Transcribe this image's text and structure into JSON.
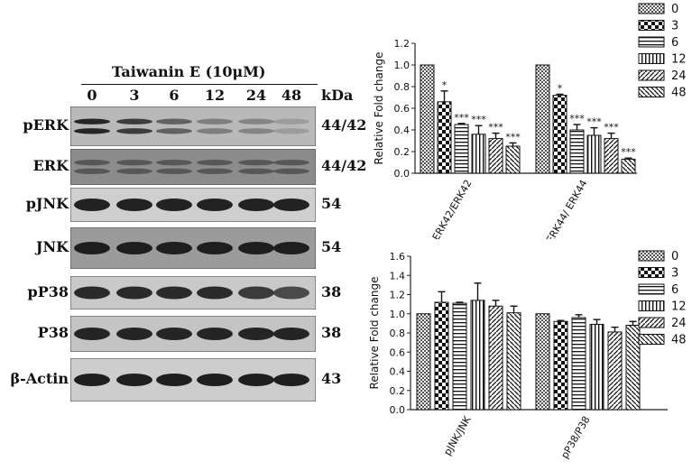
{
  "treatment_label": "Taiwanin E (10μM)",
  "lanes": [
    "0",
    "3",
    "6",
    "12",
    "24",
    "48"
  ],
  "kda_label": "kDa",
  "blots": [
    {
      "name": "pERK",
      "mw": "44/42",
      "bg": "#b9b9b9",
      "band_color": "#262626",
      "intensities": [
        1.0,
        0.85,
        0.6,
        0.4,
        0.35,
        0.2
      ],
      "double": true
    },
    {
      "name": "ERK",
      "mw": "44/42",
      "bg": "#8c8c8c",
      "band_color": "#4a4a4a",
      "intensities": [
        0.8,
        0.8,
        0.8,
        0.8,
        0.8,
        0.8
      ],
      "double": true
    },
    {
      "name": "pJNK",
      "mw": "54",
      "bg": "#cfcfcf",
      "band_color": "#222222",
      "intensities": [
        1,
        1,
        1,
        1,
        1,
        1
      ],
      "double": false
    },
    {
      "name": "JNK",
      "mw": "54",
      "bg": "#9b9b9b",
      "band_color": "#1e1e1e",
      "intensities": [
        1,
        1,
        1,
        1,
        1,
        1
      ],
      "double": false
    },
    {
      "name": "pP38",
      "mw": "38",
      "bg": "#c9c9c9",
      "band_color": "#2a2a2a",
      "intensities": [
        1,
        1,
        1,
        1,
        0.9,
        0.8
      ],
      "double": false
    },
    {
      "name": "P38",
      "mw": "38",
      "bg": "#c4c4c4",
      "band_color": "#252525",
      "intensities": [
        1,
        1,
        1,
        1,
        1,
        1
      ],
      "double": false
    },
    {
      "name": "β-Actin",
      "mw": "43",
      "bg": "#cdcdcd",
      "band_color": "#1f1f1f",
      "intensities": [
        1,
        1,
        1,
        1,
        1,
        1
      ],
      "double": false
    }
  ],
  "chart_data": [
    {
      "type": "bar",
      "ylabel": "Relative Fold change",
      "ylim": [
        0,
        1.2
      ],
      "yticks": [
        "0.0",
        "0.2",
        "0.4",
        "0.6",
        "0.8",
        "1.0",
        "1.2"
      ],
      "categories": [
        "pERK42/ERK42",
        "pERK44/ ERK44"
      ],
      "series": [
        {
          "name": "0",
          "values": [
            1.0,
            1.0
          ],
          "errors": [
            0,
            0
          ],
          "sig": [
            "",
            ""
          ]
        },
        {
          "name": "3",
          "values": [
            0.66,
            0.72
          ],
          "errors": [
            0.1,
            0.01
          ],
          "sig": [
            "*",
            "*"
          ]
        },
        {
          "name": "6",
          "values": [
            0.45,
            0.4
          ],
          "errors": [
            0.01,
            0.05
          ],
          "sig": [
            "***",
            "***"
          ]
        },
        {
          "name": "12",
          "values": [
            0.36,
            0.35
          ],
          "errors": [
            0.08,
            0.07
          ],
          "sig": [
            "***",
            "***"
          ]
        },
        {
          "name": "24",
          "values": [
            0.32,
            0.32
          ],
          "errors": [
            0.05,
            0.05
          ],
          "sig": [
            "***",
            "***"
          ]
        },
        {
          "name": "48",
          "values": [
            0.25,
            0.13
          ],
          "errors": [
            0.03,
            0.01
          ],
          "sig": [
            "***",
            "***"
          ]
        }
      ],
      "legend_position": "right"
    },
    {
      "type": "bar",
      "ylabel": "Relative Fold change",
      "ylim": [
        0,
        1.6
      ],
      "yticks": [
        "0.0",
        "0.2",
        "0.4",
        "0.6",
        "0.8",
        "1.0",
        "1.2",
        "1.4",
        "1.6"
      ],
      "categories": [
        "pJNK/JNK",
        "pP38/P38"
      ],
      "series": [
        {
          "name": "0",
          "values": [
            1.0,
            1.0
          ],
          "errors": [
            0,
            0
          ],
          "sig": [
            "",
            ""
          ]
        },
        {
          "name": "3",
          "values": [
            1.12,
            0.92
          ],
          "errors": [
            0.11,
            0.01
          ],
          "sig": [
            "",
            ""
          ]
        },
        {
          "name": "6",
          "values": [
            1.11,
            0.96
          ],
          "errors": [
            0.01,
            0.03
          ],
          "sig": [
            "",
            ""
          ]
        },
        {
          "name": "12",
          "values": [
            1.14,
            0.89
          ],
          "errors": [
            0.18,
            0.05
          ],
          "sig": [
            "",
            ""
          ]
        },
        {
          "name": "24",
          "values": [
            1.08,
            0.81
          ],
          "errors": [
            0.06,
            0.05
          ],
          "sig": [
            "",
            ""
          ]
        },
        {
          "name": "48",
          "values": [
            1.01,
            0.88
          ],
          "errors": [
            0.07,
            0.04
          ],
          "sig": [
            "",
            ""
          ]
        }
      ],
      "legend_position": "right"
    }
  ]
}
